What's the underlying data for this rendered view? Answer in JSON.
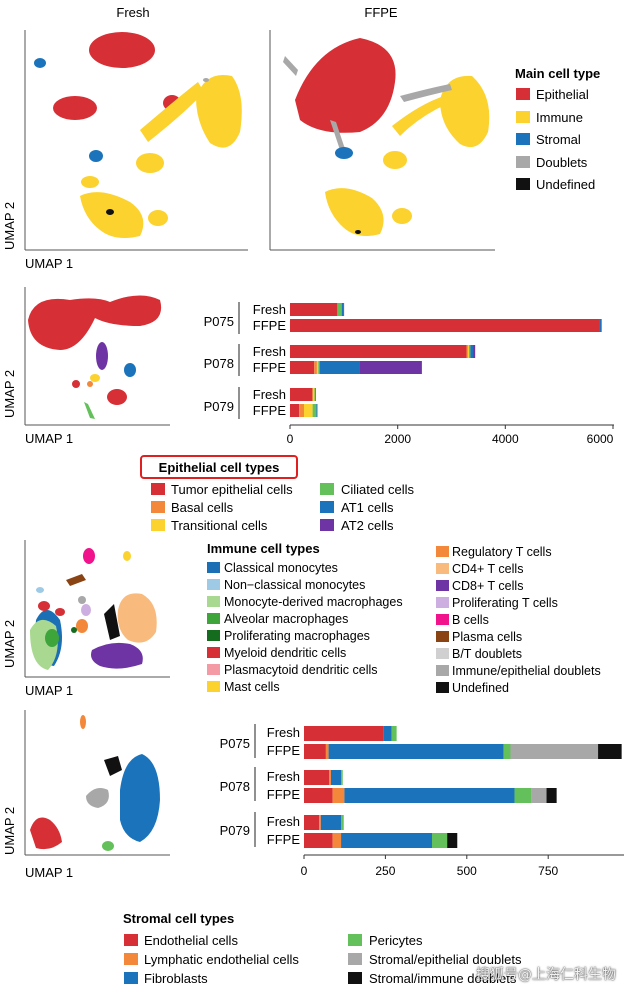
{
  "colors": {
    "epithelial": "#d62f35",
    "immune": "#fbd22e",
    "stromal": "#1b74bb",
    "doublets": "#a8a8a8",
    "undefined": "#111111",
    "tumor_epithelial": "#d62f35",
    "basal": "#f4883a",
    "transitional": "#fbd22e",
    "ciliated": "#64c05a",
    "at1": "#1b74bb",
    "at2": "#6e34a4",
    "classical_mono": "#1a6fb5",
    "nonclassical_mono": "#9ecae6",
    "mono_derived_mac": "#a9d890",
    "alveolar_mac": "#3ea53a",
    "prolif_mac": "#156c1e",
    "myeloid_dc": "#d62f35",
    "pdc": "#f49aa4",
    "mast": "#fbd22e",
    "treg": "#f4883a",
    "cd4": "#f8bb7d",
    "cd8": "#6e34a4",
    "prolif_t": "#cdaee0",
    "b_cells": "#f0138c",
    "plasma": "#8a4313",
    "bt_doublets": "#d0d0d0",
    "immune_epi_doublets": "#a8a8a8",
    "undefined_imm": "#111111",
    "endothelial": "#d62f35",
    "lymphatic_endo": "#f4883a",
    "fibroblasts": "#1b74bb",
    "pericytes": "#64c05a",
    "stromal_epi_doublets": "#a8a8a8",
    "stromal_immune_doublets": "#111111",
    "highlight_box": "#e02020"
  },
  "panel_a": {
    "titles": {
      "fresh": "Fresh",
      "ffpe": "FFPE"
    },
    "xlabel": "UMAP 1",
    "ylabel": "UMAP 2",
    "legend_title": "Main cell type",
    "legend": [
      "Epithelial",
      "Immune",
      "Stromal",
      "Doublets",
      "Undefined"
    ]
  },
  "panel_b": {
    "xlabel": "UMAP 1",
    "ylabel": "UMAP 2",
    "legend_title": "Epithelial cell types",
    "legend": [
      "Tumor epithelial cells",
      "Basal cells",
      "Transitional cells",
      "Ciliated cells",
      "AT1 cells",
      "AT2 cells"
    ]
  },
  "panel_c": {
    "xlabel": "UMAP 1",
    "ylabel": "UMAP 2",
    "legend_title": "Immune cell types",
    "legend": [
      "Classical monocytes",
      "Non−classical monocytes",
      "Monocyte-derived macrophages",
      "Alveolar macrophages",
      "Proliferating macrophages",
      "Myeloid dendritic cells",
      "Plasmacytoid dendritic cells",
      "Mast cells",
      "Regulatory T cells",
      "CD4+ T cells",
      "CD8+ T cells",
      "Proliferating T cells",
      "B cells",
      "Plasma cells",
      "B/T doublets",
      "Immune/epithelial doublets",
      "Undefined"
    ]
  },
  "panel_d": {
    "xlabel": "UMAP 1",
    "ylabel": "UMAP 2",
    "legend_title": "Stromal cell types",
    "legend": [
      "Endothelial cells",
      "Lymphatic endothelial cells",
      "Fibroblasts",
      "Pericytes",
      "Stromal/epithelial doublets",
      "Stromal/immune doublets"
    ]
  },
  "chart_data": [
    {
      "type": "bar",
      "orientation": "horizontal",
      "stacked": true,
      "groups": [
        "P075",
        "P078",
        "P079"
      ],
      "conditions": [
        "Fresh",
        "FFPE"
      ],
      "categories": [
        "P075 Fresh",
        "P075 FFPE",
        "P078 Fresh",
        "P078 FFPE",
        "P079 Fresh",
        "P079 FFPE"
      ],
      "xlim": [
        0,
        6000
      ],
      "xticks": [
        "0",
        "2000",
        "4000",
        "6000"
      ],
      "series": [
        {
          "name": "Tumor epithelial cells",
          "values": [
            880,
            5750,
            3280,
            450,
            420,
            170
          ]
        },
        {
          "name": "Basal cells",
          "values": [
            0,
            0,
            25,
            50,
            0,
            90
          ]
        },
        {
          "name": "Transitional cells",
          "values": [
            0,
            0,
            20,
            25,
            35,
            160
          ]
        },
        {
          "name": "Ciliated cells",
          "values": [
            80,
            0,
            25,
            25,
            10,
            70
          ]
        },
        {
          "name": "AT1 cells",
          "values": [
            30,
            40,
            50,
            750,
            5,
            20
          ]
        },
        {
          "name": "AT2 cells",
          "values": [
            10,
            0,
            40,
            1150,
            0,
            0
          ]
        }
      ]
    },
    {
      "type": "bar",
      "orientation": "horizontal",
      "stacked": true,
      "groups": [
        "P075",
        "P078",
        "P079"
      ],
      "conditions": [
        "Fresh",
        "FFPE"
      ],
      "categories": [
        "P075 Fresh",
        "P075 FFPE",
        "P078 Fresh",
        "P078 FFPE",
        "P079 Fresh",
        "P079 FFPE"
      ],
      "xlim": [
        0,
        950
      ],
      "xticks": [
        "0",
        "250",
        "500",
        "750"
      ],
      "series": [
        {
          "name": "Endothelial cells",
          "values": [
            235,
            65,
            75,
            85,
            45,
            85
          ]
        },
        {
          "name": "Lymphatic endothelial cells",
          "values": [
            0,
            8,
            5,
            35,
            5,
            25
          ]
        },
        {
          "name": "Fibroblasts",
          "values": [
            25,
            520,
            30,
            505,
            60,
            270
          ]
        },
        {
          "name": "Pericytes",
          "values": [
            15,
            20,
            5,
            50,
            8,
            45
          ]
        },
        {
          "name": "Stromal/epithelial doublets",
          "values": [
            0,
            260,
            0,
            45,
            0,
            0
          ]
        },
        {
          "name": "Stromal/immune doublets",
          "values": [
            0,
            70,
            0,
            30,
            0,
            30
          ]
        }
      ]
    }
  ]
}
